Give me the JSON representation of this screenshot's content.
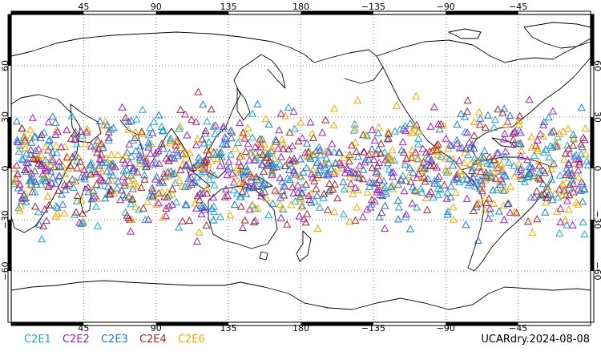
{
  "map": {
    "projection": "cylindrical-equidistant",
    "center_longitude": 180,
    "lon_ticks_deg": [
      45,
      90,
      135,
      180,
      225,
      270,
      315
    ],
    "lon_tick_labels": [
      "45",
      "90",
      "135",
      "180",
      "−135",
      "−90",
      "−45"
    ],
    "lat_ticks_deg": [
      60,
      30,
      0,
      -30,
      -60
    ],
    "lat_tick_labels": [
      "60",
      "30",
      "0",
      "−30",
      "−60"
    ],
    "gridlines": "dotted",
    "marker": "open-triangle"
  },
  "legend": [
    {
      "label": "C2E1",
      "color": "#1aa6d6"
    },
    {
      "label": "C2E2",
      "color": "#a020c0"
    },
    {
      "label": "C2E3",
      "color": "#1e78d8"
    },
    {
      "label": "C2E4",
      "color": "#a02828"
    },
    {
      "label": "C2E6",
      "color": "#f0a800"
    }
  ],
  "run_label": "UCARdry.2024-08-08"
}
